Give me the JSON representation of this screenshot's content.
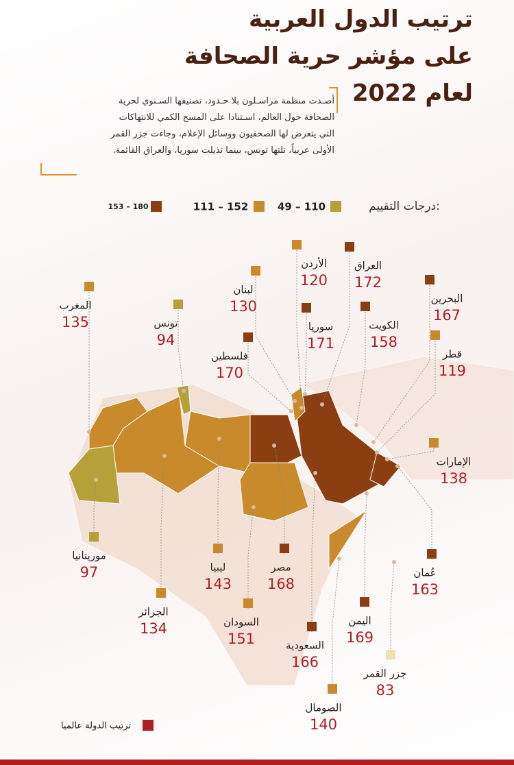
{
  "header": {
    "title_lines": [
      "ترتيب الدول العربية",
      "على مؤشر حرية الصحافة",
      "لعام 2022"
    ],
    "description_lines": [
      "أصـدت منظمة مراسـلون بلا حـدود، تصنيفها السـنوي لحرية",
      "الصحافة حول العالم، اسـتنادا على المسح الكمي للانتهاكات",
      "التي يتعرض لها الصحفيون ووسائل الإعلام، وجاءت جزر القمر",
      "الأولى عربياً، تلتها تونس، بينما تذيلت سوريا، والعراق القائمة."
    ]
  },
  "legend": {
    "label": "درجات التقييم:",
    "ranges": [
      {
        "label": "49 – 110",
        "color": "#b5a03a"
      },
      {
        "label": "111 – 152",
        "color": "#c98a2c"
      },
      {
        "label": "153 – 180",
        "color": "#8b3e12"
      }
    ]
  },
  "countries": [
    {
      "name": "المغرب",
      "rank": 135,
      "color": "#c98a2c"
    },
    {
      "name": "تونس",
      "rank": 94,
      "color": "#b5a03a"
    },
    {
      "name": "لبنان",
      "rank": 130,
      "color": "#c98a2c"
    },
    {
      "name": "الأردن",
      "rank": 120,
      "color": "#c98a2c"
    },
    {
      "name": "العراق",
      "rank": 172,
      "color": "#8b3e12"
    },
    {
      "name": "سوريا",
      "rank": 171,
      "color": "#8b3e12"
    },
    {
      "name": "الكويت",
      "rank": 158,
      "color": "#8b3e12"
    },
    {
      "name": "البحرين",
      "rank": 167,
      "color": "#8b3e12"
    },
    {
      "name": "قطر",
      "rank": 119,
      "color": "#c98a2c"
    },
    {
      "name": "فلسطين",
      "rank": 170,
      "color": "#8b3e12"
    },
    {
      "name": "الإمارات",
      "rank": 138,
      "color": "#c98a2c"
    },
    {
      "name": "موريتانيا",
      "rank": 97,
      "color": "#b5a03a"
    },
    {
      "name": "ليبيا",
      "rank": 143,
      "color": "#c98a2c"
    },
    {
      "name": "مصر",
      "rank": 168,
      "color": "#8b3e12"
    },
    {
      "name": "عُمان",
      "rank": 163,
      "color": "#8b3e12"
    },
    {
      "name": "الجزائر",
      "rank": 134,
      "color": "#c98a2c"
    },
    {
      "name": "السودان",
      "rank": 151,
      "color": "#c98a2c"
    },
    {
      "name": "اليمن",
      "rank": 169,
      "color": "#8b3e12"
    },
    {
      "name": "السعودية",
      "rank": 166,
      "color": "#8b3e12"
    },
    {
      "name": "جزر القمر",
      "rank": 83,
      "color": "#efe0b0"
    },
    {
      "name": "الصومال",
      "rank": 140,
      "color": "#c98a2c"
    }
  ],
  "footer": {
    "label": "ترتيب الدولة عالميا",
    "color": "#b01e23"
  }
}
